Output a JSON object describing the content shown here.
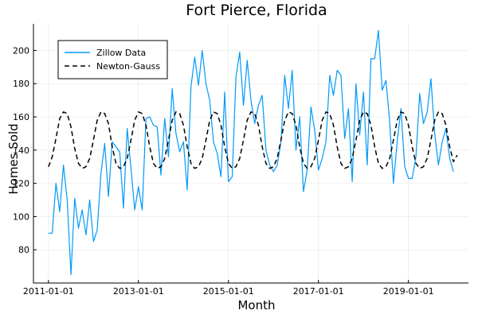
{
  "chart_data": {
    "type": "line",
    "title": "Fort Pierce, Florida",
    "xlabel": "Month",
    "ylabel": "Homes Sold",
    "x_start": "2011-01",
    "x_ticks": [
      "2011-01-01",
      "2013-01-01",
      "2015-01-01",
      "2017-01-01",
      "2019-01-01"
    ],
    "y_ticks": [
      80,
      100,
      120,
      140,
      160,
      180,
      200
    ],
    "xlim": [
      "2010-09-01",
      "2020-05-01"
    ],
    "ylim": [
      60,
      216
    ],
    "grid": true,
    "legend_position": "top-left",
    "series": [
      {
        "name": "Zillow Data",
        "color": "#009af9",
        "style": "solid",
        "values": [
          90,
          90,
          120,
          103,
          131,
          110,
          65,
          111,
          93,
          104,
          89,
          110,
          85,
          92,
          126,
          144,
          112,
          145,
          142,
          139,
          105,
          153,
          129,
          104,
          118,
          104,
          159,
          160,
          155,
          154,
          125,
          159,
          136,
          177,
          150,
          139,
          145,
          116,
          178,
          196,
          179,
          200,
          180,
          170,
          145,
          138,
          124,
          175,
          121,
          124,
          184,
          199,
          167,
          194,
          170,
          156,
          167,
          173,
          140,
          131,
          127,
          131,
          145,
          185,
          165,
          188,
          140,
          160,
          115,
          128,
          166,
          152,
          128,
          135,
          145,
          185,
          173,
          188,
          185,
          147,
          165,
          121,
          180,
          149,
          175,
          131,
          195,
          195,
          212,
          176,
          182,
          157,
          120,
          145,
          165,
          130,
          123,
          123,
          136,
          174,
          156,
          163,
          183,
          150,
          131,
          145,
          153,
          135,
          127
        ]
      },
      {
        "name": "Newton-Gauss",
        "color": "#000000",
        "style": "dashed",
        "values": [
          130,
          136,
          147,
          159,
          163,
          162,
          154,
          141,
          132,
          129,
          130,
          135,
          146,
          158,
          163,
          162,
          156,
          142,
          132,
          129,
          130,
          135,
          146,
          158,
          163,
          162,
          155,
          142,
          132,
          129,
          130,
          135,
          146,
          158,
          163,
          162,
          155,
          142,
          132,
          129,
          130,
          135,
          146,
          158,
          163,
          162,
          155,
          142,
          132,
          129,
          130,
          135,
          146,
          158,
          163,
          162,
          155,
          142,
          132,
          129,
          130,
          135,
          146,
          158,
          163,
          162,
          155,
          142,
          132,
          129,
          130,
          135,
          146,
          158,
          163,
          162,
          155,
          142,
          132,
          129,
          130,
          135,
          146,
          158,
          163,
          162,
          155,
          142,
          132,
          129,
          130,
          135,
          146,
          158,
          163,
          162,
          155,
          142,
          132,
          129,
          130,
          135,
          146,
          158,
          163,
          162,
          155,
          142,
          133,
          137
        ]
      }
    ]
  }
}
